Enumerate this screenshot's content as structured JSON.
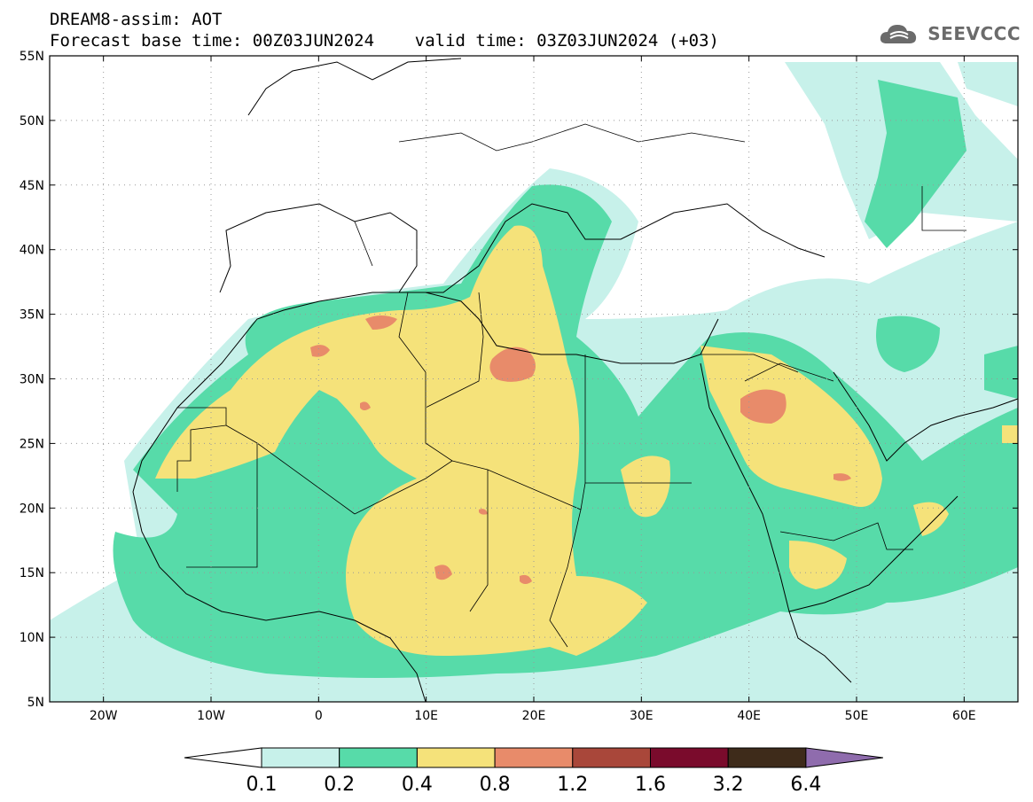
{
  "title": {
    "line1": "DREAM8-assim: AOT",
    "line2": "Forecast base time: 00Z03JUN2024    valid time: 03Z03JUN2024 (+03)"
  },
  "logo": {
    "text": "SEEVCCC",
    "icon": "cloud-logo-icon"
  },
  "map": {
    "lon_range": [
      -25,
      65
    ],
    "lat_range": [
      5,
      55
    ],
    "lat_ticks": [
      "5N",
      "10N",
      "15N",
      "20N",
      "25N",
      "30N",
      "35N",
      "40N",
      "45N",
      "50N",
      "55N"
    ],
    "lon_ticks": [
      "20W",
      "10W",
      "0",
      "10E",
      "20E",
      "30E",
      "40E",
      "50E",
      "60E"
    ],
    "gridlines": "dotted"
  },
  "colorbar": {
    "labels": [
      "0.1",
      "0.2",
      "0.4",
      "0.8",
      "1.2",
      "1.6",
      "3.2",
      "6.4"
    ],
    "colors": [
      "#ffffff",
      "#c7f1ea",
      "#57dba9",
      "#f5e27a",
      "#e88b6a",
      "#a9473a",
      "#7a0b2c",
      "#3e2b1a",
      "#8f6cad"
    ]
  }
}
